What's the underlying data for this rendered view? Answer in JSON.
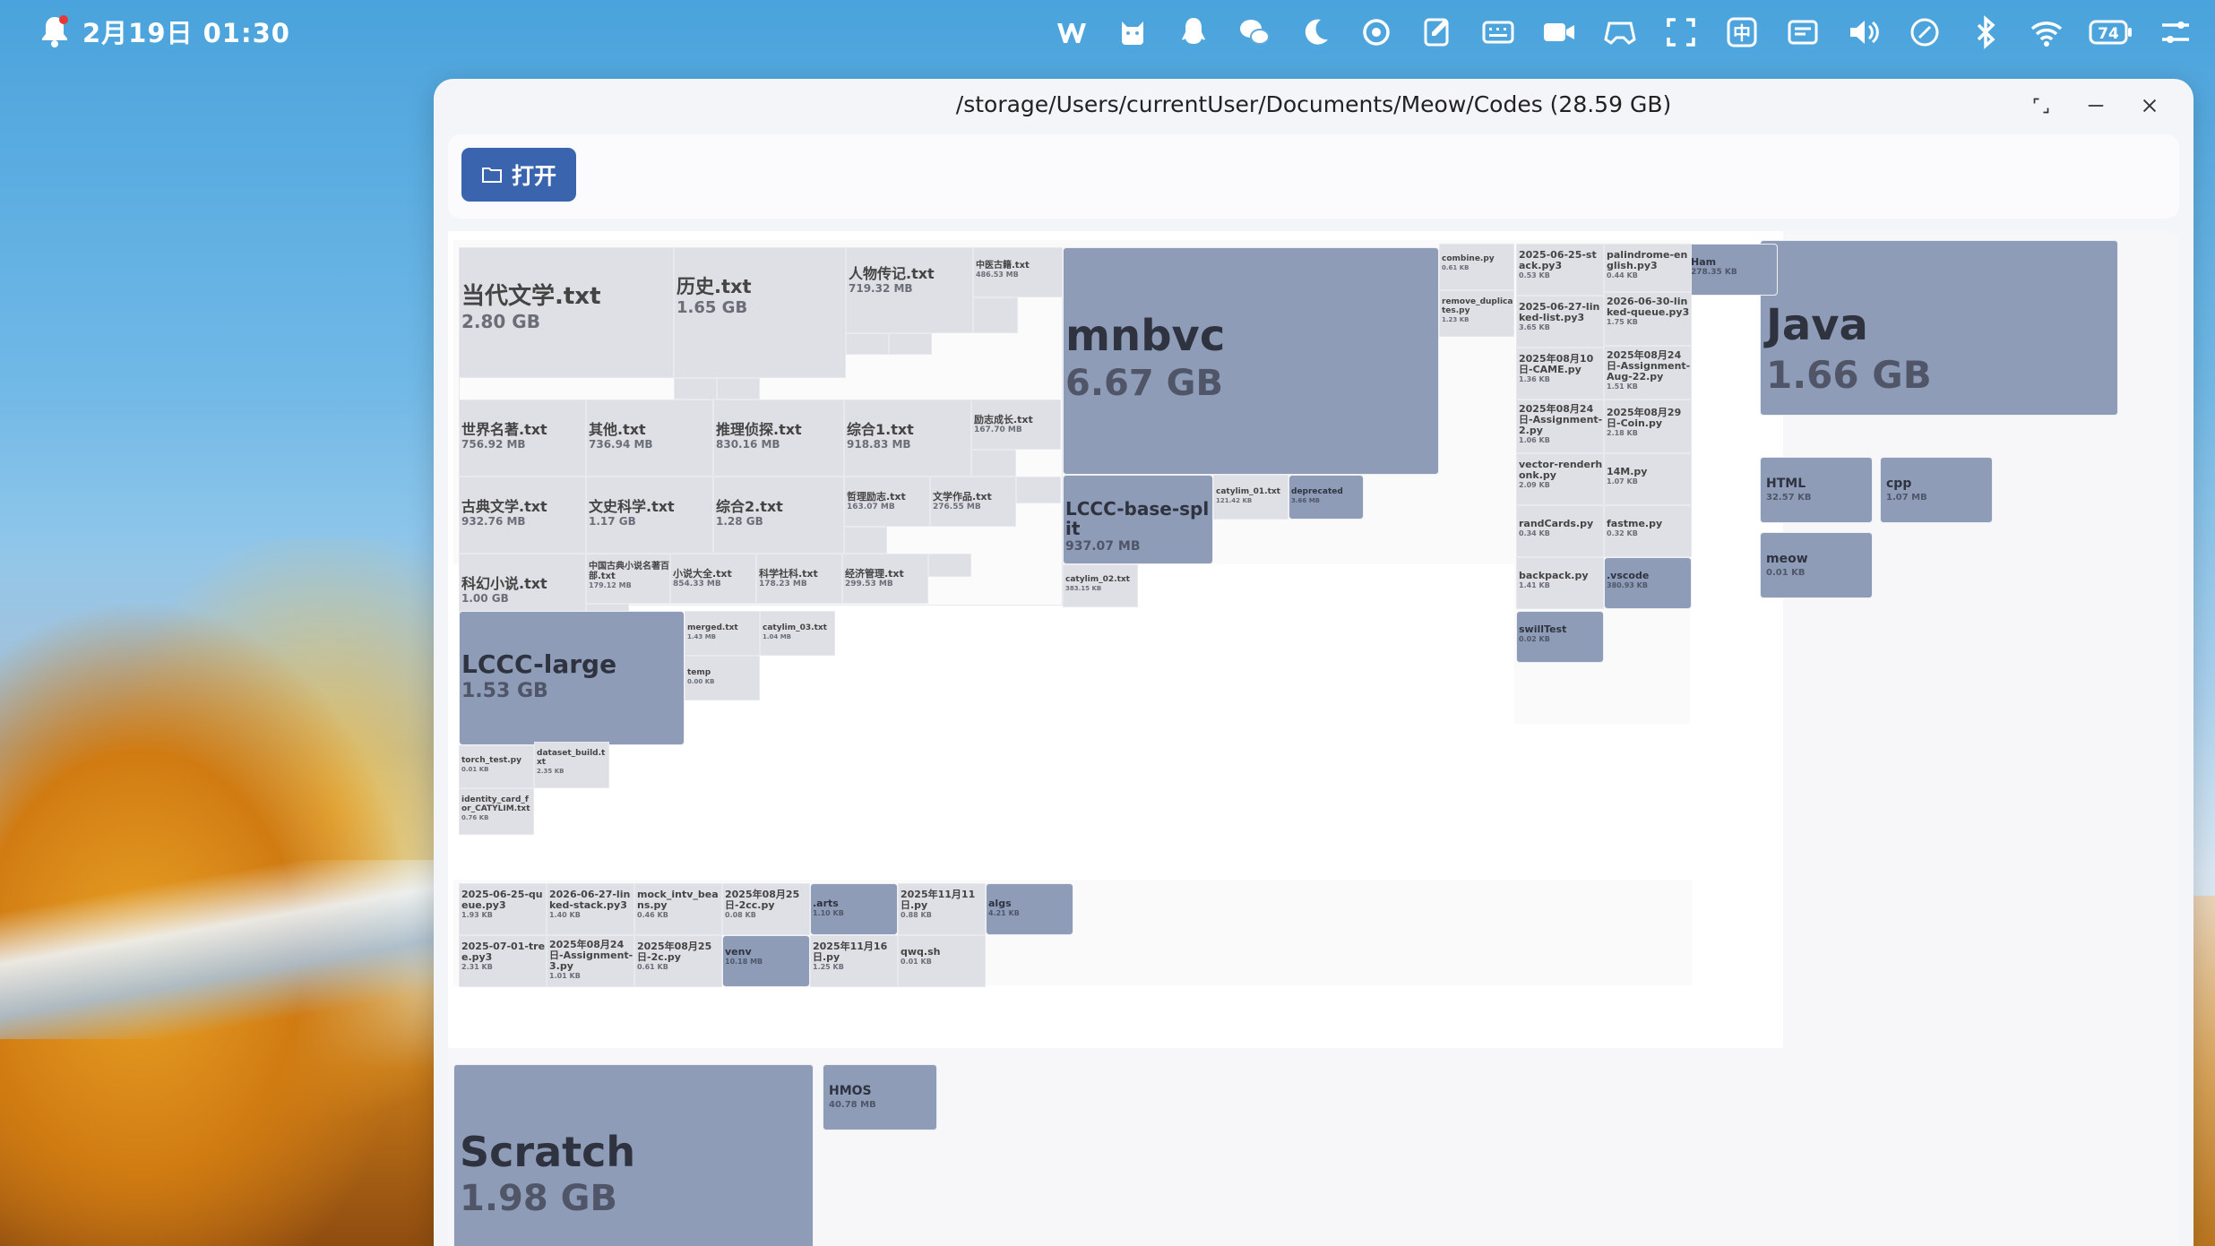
{
  "status_bar": {
    "datetime": "2月19日 01:30",
    "ime_label": "中",
    "battery": "74"
  },
  "window": {
    "title": "/storage/Users/currentUser/Documents/Meow/Codes (28.59 GB)",
    "open_button_label": "打开"
  },
  "treemap": {
    "big_dirs": {
      "java": {
        "name": "Java",
        "size": "1.66 GB"
      },
      "html": {
        "name": "HTML",
        "size": "32.57 KB"
      },
      "cpp": {
        "name": "cpp",
        "size": "1.07 MB"
      },
      "meow": {
        "name": "meow",
        "size": "0.01 KB"
      },
      "scratch": {
        "name": "Scratch",
        "size": "1.98 GB"
      },
      "hmos": {
        "name": "HMOS",
        "size": "40.78 MB"
      },
      "ham": {
        "name": "Ham",
        "size": "278.35 KB"
      }
    },
    "books": [
      {
        "name": "当代文学.txt",
        "size": "2.80 GB"
      },
      {
        "name": "历史.txt",
        "size": "1.65 GB"
      },
      {
        "name": "人物传记.txt",
        "size": "719.32 MB"
      },
      {
        "name": "中医古籍.txt",
        "size": "486.53 MB"
      },
      {
        "name": "世界名著.txt",
        "size": "756.92 MB"
      },
      {
        "name": "其他.txt",
        "size": "736.94 MB"
      },
      {
        "name": "推理侦探.txt",
        "size": "830.16 MB"
      },
      {
        "name": "综合1.txt",
        "size": "918.83 MB"
      },
      {
        "name": "励志成长.txt",
        "size": "167.70 MB"
      },
      {
        "name": "古典文学.txt",
        "size": "932.76 MB"
      },
      {
        "name": "文史科学.txt",
        "size": "1.17 GB"
      },
      {
        "name": "综合2.txt",
        "size": "1.28 GB"
      },
      {
        "name": "哲理励志.txt",
        "size": "163.07 MB"
      },
      {
        "name": "文学作品.txt",
        "size": "276.55 MB"
      },
      {
        "name": "科幻小说.txt",
        "size": "1.00 GB"
      },
      {
        "name": "中国古典小说名著百部.txt",
        "size": "179.12 MB"
      },
      {
        "name": "小说大全.txt",
        "size": "854.33 MB"
      },
      {
        "name": "科学社科.txt",
        "size": "178.23 MB"
      },
      {
        "name": "经济管理.txt",
        "size": "299.53 MB"
      }
    ],
    "mnbvc": {
      "name": "mnbvc",
      "size": "6.67 GB"
    },
    "lccc_base": {
      "name": "LCCC-base-split",
      "size": "937.07 MB"
    },
    "catylim01": {
      "name": "catylim_01.txt",
      "size": "121.42 KB"
    },
    "deprecated": {
      "name": "deprecated",
      "size": "3.66 MB"
    },
    "catylim02": {
      "name": "catylim_02.txt",
      "size": "383.15 KB"
    },
    "lccc_large": {
      "name": "LCCC-large",
      "size": "1.53 GB"
    },
    "merged": {
      "name": "merged.txt",
      "size": "1.43 MB"
    },
    "catylim03": {
      "name": "catylim_03.txt",
      "size": "1.04 MB"
    },
    "temp": {
      "name": "temp",
      "size": "0.00 KB"
    },
    "torch_test": {
      "name": "torch_test.py",
      "size": "0.01 KB"
    },
    "dataset_build": {
      "name": "dataset_build.txt",
      "size": "2.35 KB"
    },
    "identity_card": {
      "name": "identity_card_for_CATYLIM.txt",
      "size": "0.76 KB"
    },
    "combine": {
      "name": "combine.py",
      "size": "0.61 KB"
    },
    "remove_dup": {
      "name": "remove_duplicates.py",
      "size": "1.23 KB"
    },
    "right_col1": [
      {
        "name": "2025-06-25-stack.py3",
        "size": "0.53 KB"
      },
      {
        "name": "2025-06-27-linked-list.py3",
        "size": "3.65 KB"
      },
      {
        "name": "2025年08月10日-CAME.py",
        "size": "1.36 KB"
      },
      {
        "name": "2025年08月24日-Assignment-2.py",
        "size": "1.06 KB"
      },
      {
        "name": "vector-renderhonk.py",
        "size": "2.09 KB"
      },
      {
        "name": "randCards.py",
        "size": "0.34 KB"
      },
      {
        "name": "backpack.py",
        "size": "1.41 KB"
      },
      {
        "name": "swillTest",
        "size": "0.02 KB"
      }
    ],
    "right_col2": [
      {
        "name": "palindrome-english.py3",
        "size": "0.44 KB"
      },
      {
        "name": "2026-06-30-linked-queue.py3",
        "size": "1.75 KB"
      },
      {
        "name": "2025年08月24日-Assignment-Aug-22.py",
        "size": "1.51 KB"
      },
      {
        "name": "2025年08月29日-Coin.py",
        "size": "2.18 KB"
      },
      {
        "name": "14M.py",
        "size": "1.07 KB"
      },
      {
        "name": "fastme.py",
        "size": "0.32 KB"
      },
      {
        "name": ".vscode",
        "size": "380.93 KB"
      }
    ],
    "bottom_row1": [
      {
        "name": "2025-06-25-queue.py3",
        "size": "1.93 KB"
      },
      {
        "name": "2026-06-27-linked-stack.py3",
        "size": "1.40 KB"
      },
      {
        "name": "mock_intv_beans.py",
        "size": "0.46 KB"
      },
      {
        "name": "2025年08月25日-2cc.py",
        "size": "0.08 KB"
      },
      {
        "name": ".arts",
        "size": "1.10 KB"
      },
      {
        "name": "2025年11月11日.py",
        "size": "0.88 KB"
      },
      {
        "name": "algs",
        "size": "4.21 KB"
      }
    ],
    "bottom_row2": [
      {
        "name": "2025-07-01-tree.py3",
        "size": "2.31 KB"
      },
      {
        "name": "2025年08月24日-Assignment-3.py",
        "size": "1.01 KB"
      },
      {
        "name": "2025年08月25日-2c.py",
        "size": "0.61 KB"
      },
      {
        "name": "venv",
        "size": "10.18 MB"
      },
      {
        "name": "2025年11月16日.py",
        "size": "1.25 KB"
      },
      {
        "name": "qwq.sh",
        "size": "0.01 KB"
      }
    ]
  }
}
